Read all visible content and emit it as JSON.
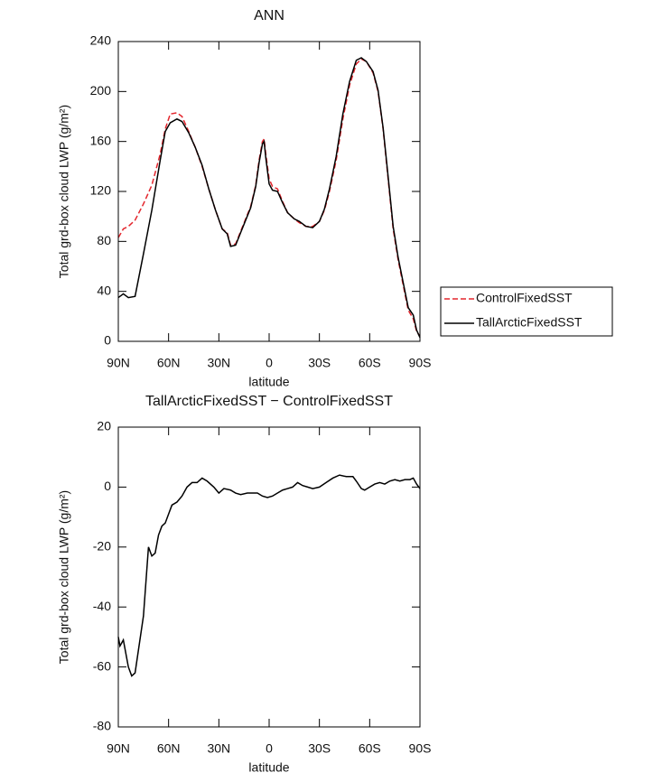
{
  "chart_data": [
    {
      "type": "line",
      "title": "ANN",
      "x_label": "latitude",
      "y_label": "Total grd-box cloud LWP (g/m²)",
      "xlim": [
        90,
        -90
      ],
      "xticks": [
        {
          "value": 90,
          "label": "90N"
        },
        {
          "value": 60,
          "label": "60N"
        },
        {
          "value": 30,
          "label": "30N"
        },
        0,
        {
          "value": -30,
          "label": "30S"
        },
        {
          "value": -60,
          "label": "60S"
        },
        {
          "value": -90,
          "label": "90S"
        }
      ],
      "ylim": [
        0,
        240
      ],
      "yticks": [
        0,
        40,
        80,
        120,
        160,
        200,
        240
      ],
      "legend": "right",
      "x": [
        90,
        87,
        84,
        80,
        75,
        70,
        65,
        62,
        59,
        55,
        52,
        48,
        44,
        40,
        36,
        32,
        28,
        25,
        23,
        20,
        17,
        14,
        11,
        8,
        6,
        4,
        3,
        2,
        0,
        -2,
        -5,
        -8,
        -11,
        -15,
        -18,
        -22,
        -26,
        -30,
        -33,
        -36,
        -40,
        -44,
        -48,
        -52,
        -55,
        -58,
        -62,
        -65,
        -68,
        -71,
        -74,
        -77,
        -80,
        -83,
        -86,
        -88,
        -90
      ],
      "series": [
        {
          "name": "ControlFixedSST",
          "color": "#e3262d",
          "line_style": "dashed",
          "values": [
            83,
            90,
            92,
            97,
            110,
            125,
            150,
            170,
            182,
            183,
            180,
            168,
            155,
            140,
            122,
            105,
            90,
            87,
            77,
            78,
            88,
            98,
            108,
            125,
            145,
            160,
            162,
            150,
            130,
            124,
            122,
            112,
            103,
            98,
            95,
            92,
            92,
            96,
            105,
            120,
            145,
            178,
            205,
            222,
            226,
            224,
            215,
            200,
            170,
            130,
            90,
            65,
            45,
            25,
            18,
            8,
            4
          ]
        },
        {
          "name": "TallArcticFixedSST",
          "color": "#000000",
          "line_style": "solid",
          "values": [
            35,
            38,
            35,
            36,
            70,
            105,
            145,
            168,
            175,
            178,
            176,
            167,
            155,
            141,
            122,
            105,
            90,
            86,
            76,
            77,
            87,
            97,
            107,
            124,
            143,
            158,
            160,
            147,
            126,
            121,
            120,
            111,
            103,
            98,
            96,
            92,
            91,
            96,
            106,
            122,
            148,
            182,
            208,
            225,
            227,
            224,
            216,
            201,
            171,
            132,
            92,
            67,
            47,
            27,
            21,
            9,
            3
          ]
        }
      ]
    },
    {
      "type": "line",
      "title": "TallArcticFixedSST − ControlFixedSST",
      "x_label": "latitude",
      "y_label": "Total grd-box cloud LWP (g/m²)",
      "xlim": [
        90,
        -90
      ],
      "xticks": [
        {
          "value": 90,
          "label": "90N"
        },
        {
          "value": 60,
          "label": "60N"
        },
        {
          "value": 30,
          "label": "30N"
        },
        0,
        {
          "value": -30,
          "label": "30S"
        },
        {
          "value": -60,
          "label": "60S"
        },
        {
          "value": -90,
          "label": "90S"
        }
      ],
      "ylim": [
        -80,
        20
      ],
      "yticks": [
        -80,
        -60,
        -40,
        -20,
        0,
        20
      ],
      "x": [
        90,
        89,
        87,
        84,
        82,
        80,
        75,
        72,
        70,
        68,
        66,
        64,
        62,
        60,
        58,
        55,
        52,
        49,
        46,
        43,
        40,
        37,
        33,
        30,
        27,
        23,
        20,
        17,
        13,
        10,
        7,
        4,
        1,
        -2,
        -5,
        -8,
        -11,
        -14,
        -17,
        -20,
        -23,
        -26,
        -30,
        -34,
        -38,
        -42,
        -46,
        -50,
        -52,
        -55,
        -57,
        -60,
        -63,
        -66,
        -69,
        -72,
        -75,
        -78,
        -81,
        -84,
        -86,
        -88,
        -90
      ],
      "values": [
        -50,
        -53,
        -51,
        -60,
        -63,
        -62,
        -43,
        -20,
        -23,
        -22,
        -16,
        -13,
        -12,
        -9,
        -6,
        -5,
        -3,
        0,
        1.5,
        1.5,
        3,
        2,
        0,
        -2,
        -0.5,
        -1,
        -2,
        -2.5,
        -2,
        -2,
        -2,
        -3,
        -3.5,
        -3,
        -2,
        -1,
        -0.5,
        0,
        1.5,
        0.5,
        0,
        -0.5,
        0,
        1.5,
        3,
        4,
        3.5,
        3.5,
        2,
        -0.5,
        -1,
        0,
        1,
        1.5,
        1,
        2,
        2.5,
        2,
        2.5,
        2.5,
        3,
        1,
        -0.5
      ],
      "color": "#000000"
    }
  ]
}
